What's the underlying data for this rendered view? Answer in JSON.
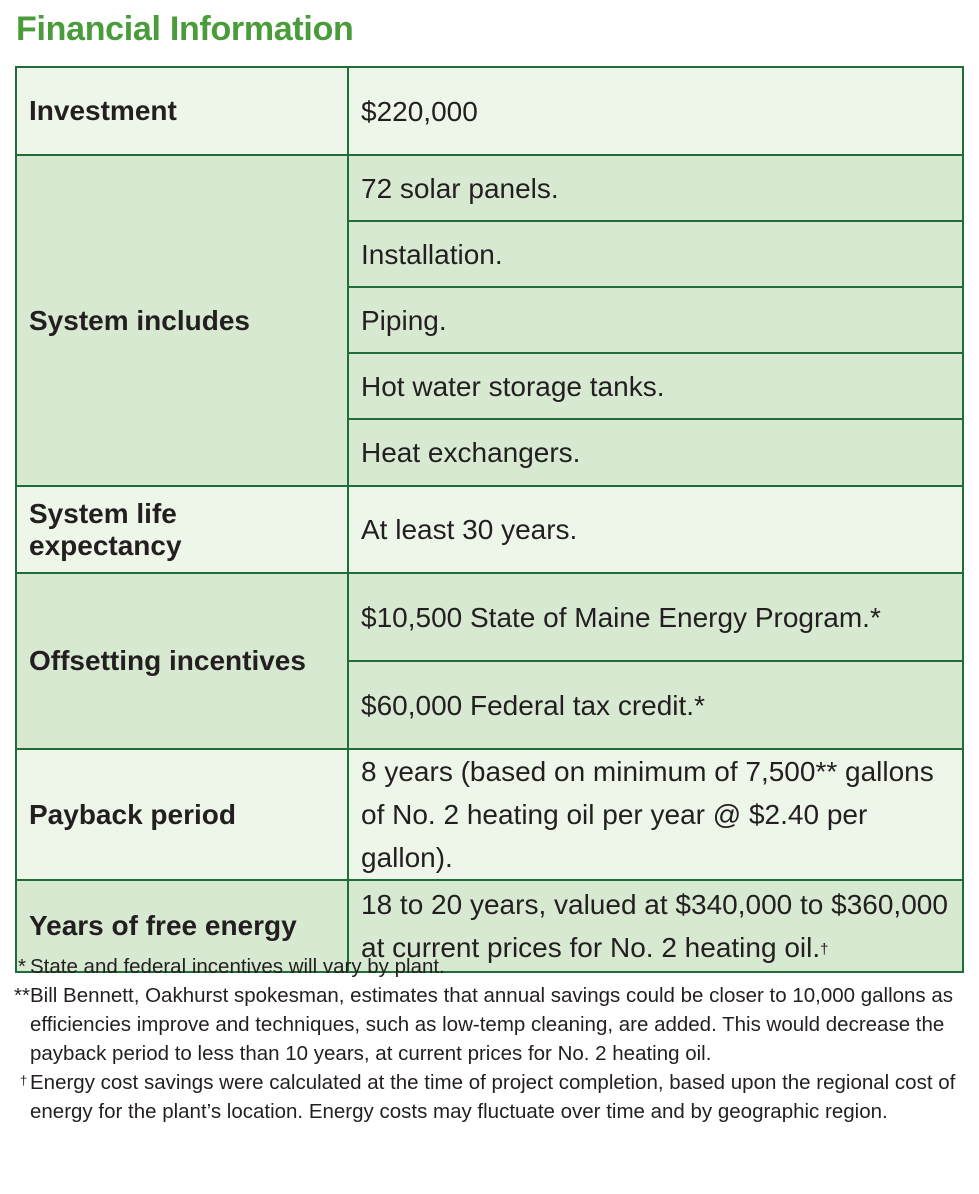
{
  "title": "Financial Information",
  "rows": {
    "investment": {
      "label": "Investment",
      "value": "$220,000"
    },
    "system_includes": {
      "label": "System includes",
      "items": [
        "72 solar panels.",
        "Installation.",
        "Piping.",
        "Hot water storage tanks.",
        "Heat exchangers."
      ]
    },
    "life_expectancy": {
      "label": "System life expectancy",
      "value": "At least 30 years."
    },
    "incentives": {
      "label": "Offsetting incentives",
      "items": [
        "$10,500 State of Maine Energy Program.*",
        "$60,000 Federal tax credit.*"
      ]
    },
    "payback": {
      "label": "Payback period",
      "value": "8 years (based on minimum of 7,500** gallons of No. 2 heating oil per year @ $2.40 per gallon)."
    },
    "free_energy": {
      "label": "Years of free energy",
      "value": "18 to 20 years, valued at $340,000 to $360,000 at current prices for No. 2 heating oil.",
      "marker": "†"
    }
  },
  "footnotes": {
    "note1": {
      "mark": "*",
      "text": "State and federal incentives will vary by plant."
    },
    "note2": {
      "mark": "**",
      "text": "Bill Bennett, Oakhurst spokesman, estimates that annual savings could be closer to 10,000 gallons as efficiencies improve and techniques, such as low-temp cleaning, are added. This would decrease the payback period to less than 10 years, at current prices for No. 2 heating oil."
    },
    "note3": {
      "mark": "†",
      "text": "Energy cost savings were calculated at the time of project completion, based upon the regional cost of energy for the plant’s location. Energy costs may fluctuate over time and by geographic region."
    }
  },
  "colors": {
    "title_green": "#4a9c3b",
    "border_green": "#1f6e3a",
    "row_light": "#eef6ea",
    "row_dark": "#d8e9d2"
  }
}
